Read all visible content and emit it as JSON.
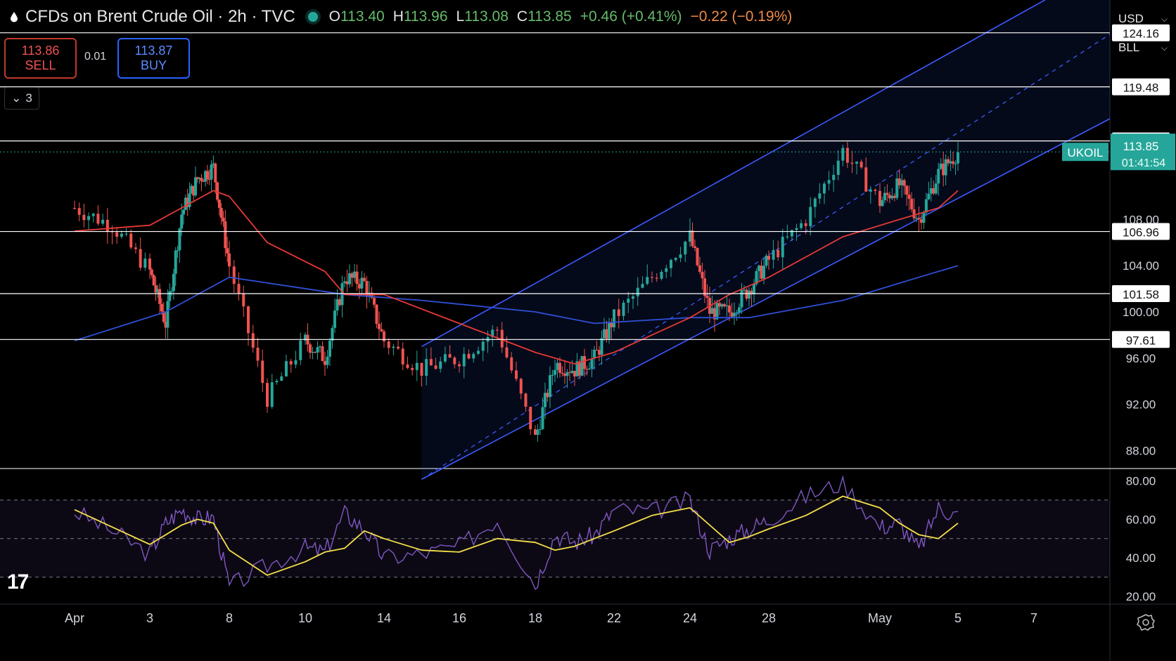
{
  "header": {
    "title": "CFDs on Brent Crude Oil · 2h · TVC",
    "open_label": "O",
    "open": "113.40",
    "high_label": "H",
    "high": "113.96",
    "low_label": "L",
    "low": "113.08",
    "close_label": "C",
    "close": "113.85",
    "change": "+0.46 (+0.41%)",
    "change2": "−0.22 (−0.19%)"
  },
  "trade": {
    "sell_price": "113.86",
    "sell_label": "SELL",
    "spread": "0.01",
    "buy_price": "113.87",
    "buy_label": "BUY"
  },
  "indicators_collapsed": {
    "count": "3"
  },
  "selectors": {
    "currency": "USD",
    "unit": "BLL"
  },
  "price_tag": {
    "symbol": "UKOIL",
    "price": "113.85",
    "countdown": "01:41:54"
  },
  "colors": {
    "up": "#26a69a",
    "down": "#ef5350",
    "ma_fast": "#e53935",
    "ma_slow": "#2f4fd6",
    "rsi": "#7e57c2",
    "rsi_ma": "#f5e04a",
    "channel": "#3d5afe",
    "level": "#ffffff"
  },
  "chart_data": {
    "type": "candlestick",
    "symbol": "UKOIL",
    "timeframe": "2h",
    "x_ticks": [
      "Apr",
      "3",
      "8",
      "10",
      "14",
      "16",
      "18",
      "22",
      "24",
      "28",
      "May",
      "5",
      "7"
    ],
    "y_ticks": [
      "88.00",
      "92.00",
      "96.00",
      "100.00",
      "104.00",
      "108.00"
    ],
    "ylim": [
      86.5,
      127
    ],
    "levels": [
      "124.16",
      "119.48",
      "114.80",
      "106.96",
      "101.58",
      "97.61"
    ],
    "last_price": 113.85,
    "channel": {
      "start_date": "Apr 15",
      "end_date": "May 8",
      "upper": [
        97.0,
        128.3
      ],
      "middle": [
        85.5,
        121.9
      ],
      "lower": [
        85.5,
        115.0
      ]
    },
    "price_path": [
      {
        "t": "Apr 1",
        "v": 109.0
      },
      {
        "t": "Apr 2",
        "v": 107.5
      },
      {
        "t": "Apr 3",
        "v": 103.5
      },
      {
        "t": "Apr 4",
        "v": 99.0
      },
      {
        "t": "Apr 5",
        "v": 108.5
      },
      {
        "t": "Apr 6",
        "v": 111.5
      },
      {
        "t": "Apr 7",
        "v": 112.5
      },
      {
        "t": "Apr 8",
        "v": 104.0
      },
      {
        "t": "Apr 9",
        "v": 92.5
      },
      {
        "t": "Apr 10",
        "v": 97.5
      },
      {
        "t": "Apr 11",
        "v": 96.0
      },
      {
        "t": "Apr 12",
        "v": 103.0
      },
      {
        "t": "Apr 13",
        "v": 102.5
      },
      {
        "t": "Apr 14",
        "v": 97.5
      },
      {
        "t": "Apr 15",
        "v": 95.0
      },
      {
        "t": "Apr 16",
        "v": 96.0
      },
      {
        "t": "Apr 17",
        "v": 98.5
      },
      {
        "t": "Apr 18",
        "v": 89.0
      },
      {
        "t": "Apr 19",
        "v": 95.5
      },
      {
        "t": "Apr 20",
        "v": 95.0
      },
      {
        "t": "Apr 21",
        "v": 96.0
      },
      {
        "t": "Apr 22",
        "v": 99.5
      },
      {
        "t": "Apr 23",
        "v": 103.0
      },
      {
        "t": "Apr 24",
        "v": 106.5
      },
      {
        "t": "Apr 25",
        "v": 100.0
      },
      {
        "t": "Apr 26",
        "v": 100.0
      },
      {
        "t": "Apr 27",
        "v": 102.0
      },
      {
        "t": "Apr 28",
        "v": 104.5
      },
      {
        "t": "Apr 29",
        "v": 108.0
      },
      {
        "t": "Apr 30",
        "v": 114.0
      },
      {
        "t": "May 1",
        "v": 109.5
      },
      {
        "t": "May 2",
        "v": 111.0
      },
      {
        "t": "May 3",
        "v": 108.0
      },
      {
        "t": "May 4",
        "v": 112.0
      },
      {
        "t": "May 5",
        "v": 113.85
      }
    ],
    "ma_fast": [
      {
        "t": "Apr 1",
        "v": 107.0
      },
      {
        "t": "Apr 3",
        "v": 107.5
      },
      {
        "t": "Apr 5",
        "v": 109.0
      },
      {
        "t": "Apr 7",
        "v": 110.5
      },
      {
        "t": "Apr 8",
        "v": 110.0
      },
      {
        "t": "Apr 9",
        "v": 106.0
      },
      {
        "t": "Apr 11",
        "v": 103.5
      },
      {
        "t": "Apr 12",
        "v": 101.5
      },
      {
        "t": "Apr 14",
        "v": 101.5
      },
      {
        "t": "Apr 16",
        "v": 99.0
      },
      {
        "t": "Apr 18",
        "v": 96.5
      },
      {
        "t": "Apr 20",
        "v": 95.5
      },
      {
        "t": "Apr 22",
        "v": 96.5
      },
      {
        "t": "Apr 24",
        "v": 99.5
      },
      {
        "t": "Apr 26",
        "v": 101.5
      },
      {
        "t": "Apr 28",
        "v": 103.0
      },
      {
        "t": "Apr 30",
        "v": 106.5
      },
      {
        "t": "May 2",
        "v": 108.0
      },
      {
        "t": "May 4",
        "v": 109.0
      },
      {
        "t": "May 5",
        "v": 110.5
      }
    ],
    "ma_slow": [
      {
        "t": "Apr 1",
        "v": 97.5
      },
      {
        "t": "Apr 4",
        "v": 100.0
      },
      {
        "t": "Apr 8",
        "v": 103.0
      },
      {
        "t": "Apr 12",
        "v": 101.5
      },
      {
        "t": "Apr 15",
        "v": 101.0
      },
      {
        "t": "Apr 18",
        "v": 100.0
      },
      {
        "t": "Apr 21",
        "v": 99.0
      },
      {
        "t": "Apr 24",
        "v": 99.5
      },
      {
        "t": "Apr 27",
        "v": 99.5
      },
      {
        "t": "Apr 30",
        "v": 101.0
      },
      {
        "t": "May 3",
        "v": 103.0
      },
      {
        "t": "May 5",
        "v": 104.0
      }
    ],
    "rsi_panel": {
      "y_ticks": [
        "20.00",
        "40.00",
        "60.00",
        "80.00"
      ],
      "ylim": [
        16,
        86
      ],
      "bands": [
        70,
        50,
        30
      ],
      "rsi": [
        {
          "t": "Apr 1",
          "v": 64
        },
        {
          "t": "Apr 2",
          "v": 54
        },
        {
          "t": "Apr 3",
          "v": 42
        },
        {
          "t": "Apr 4",
          "v": 58
        },
        {
          "t": "Apr 5",
          "v": 65
        },
        {
          "t": "Apr 6",
          "v": 60
        },
        {
          "t": "Apr 7",
          "v": 61
        },
        {
          "t": "Apr 8",
          "v": 25
        },
        {
          "t": "Apr 9",
          "v": 36
        },
        {
          "t": "Apr 10",
          "v": 45
        },
        {
          "t": "Apr 11",
          "v": 43
        },
        {
          "t": "Apr 12",
          "v": 63
        },
        {
          "t": "Apr 13",
          "v": 55
        },
        {
          "t": "Apr 14",
          "v": 40
        },
        {
          "t": "Apr 15",
          "v": 42
        },
        {
          "t": "Apr 16",
          "v": 46
        },
        {
          "t": "Apr 17",
          "v": 60
        },
        {
          "t": "Apr 18",
          "v": 26
        },
        {
          "t": "Apr 19",
          "v": 52
        },
        {
          "t": "Apr 20",
          "v": 48
        },
        {
          "t": "Apr 21",
          "v": 52
        },
        {
          "t": "Apr 22",
          "v": 65
        },
        {
          "t": "Apr 23",
          "v": 64
        },
        {
          "t": "Apr 24",
          "v": 70
        },
        {
          "t": "Apr 25",
          "v": 44
        },
        {
          "t": "Apr 26",
          "v": 50
        },
        {
          "t": "Apr 27",
          "v": 55
        },
        {
          "t": "Apr 28",
          "v": 60
        },
        {
          "t": "Apr 29",
          "v": 72
        },
        {
          "t": "Apr 30",
          "v": 79
        },
        {
          "t": "May 1",
          "v": 56
        },
        {
          "t": "May 2",
          "v": 58
        },
        {
          "t": "May 3",
          "v": 44
        },
        {
          "t": "May 4",
          "v": 66
        },
        {
          "t": "May 5",
          "v": 62
        }
      ],
      "rsi_ma": [
        {
          "t": "Apr 1",
          "v": 65
        },
        {
          "t": "Apr 2",
          "v": 56
        },
        {
          "t": "Apr 3",
          "v": 47
        },
        {
          "t": "Apr 4",
          "v": 52
        },
        {
          "t": "Apr 5",
          "v": 57
        },
        {
          "t": "Apr 6",
          "v": 60
        },
        {
          "t": "Apr 7",
          "v": 58
        },
        {
          "t": "Apr 8",
          "v": 44
        },
        {
          "t": "Apr 9",
          "v": 31
        },
        {
          "t": "Apr 10",
          "v": 38
        },
        {
          "t": "Apr 11",
          "v": 43
        },
        {
          "t": "Apr 12",
          "v": 45
        },
        {
          "t": "Apr 13",
          "v": 54
        },
        {
          "t": "Apr 14",
          "v": 50
        },
        {
          "t": "Apr 15",
          "v": 44
        },
        {
          "t": "Apr 16",
          "v": 43
        },
        {
          "t": "Apr 17",
          "v": 50
        },
        {
          "t": "Apr 18",
          "v": 48
        },
        {
          "t": "Apr 19",
          "v": 44
        },
        {
          "t": "Apr 20",
          "v": 46
        },
        {
          "t": "Apr 21",
          "v": 50
        },
        {
          "t": "Apr 22",
          "v": 54
        },
        {
          "t": "Apr 23",
          "v": 62
        },
        {
          "t": "Apr 24",
          "v": 66
        },
        {
          "t": "Apr 25",
          "v": 57
        },
        {
          "t": "Apr 26",
          "v": 48
        },
        {
          "t": "Apr 27",
          "v": 51
        },
        {
          "t": "Apr 28",
          "v": 55
        },
        {
          "t": "Apr 29",
          "v": 62
        },
        {
          "t": "Apr 30",
          "v": 72
        },
        {
          "t": "May 1",
          "v": 66
        },
        {
          "t": "May 2",
          "v": 58
        },
        {
          "t": "May 3",
          "v": 52
        },
        {
          "t": "May 4",
          "v": 50
        },
        {
          "t": "May 5",
          "v": 58
        }
      ]
    }
  }
}
